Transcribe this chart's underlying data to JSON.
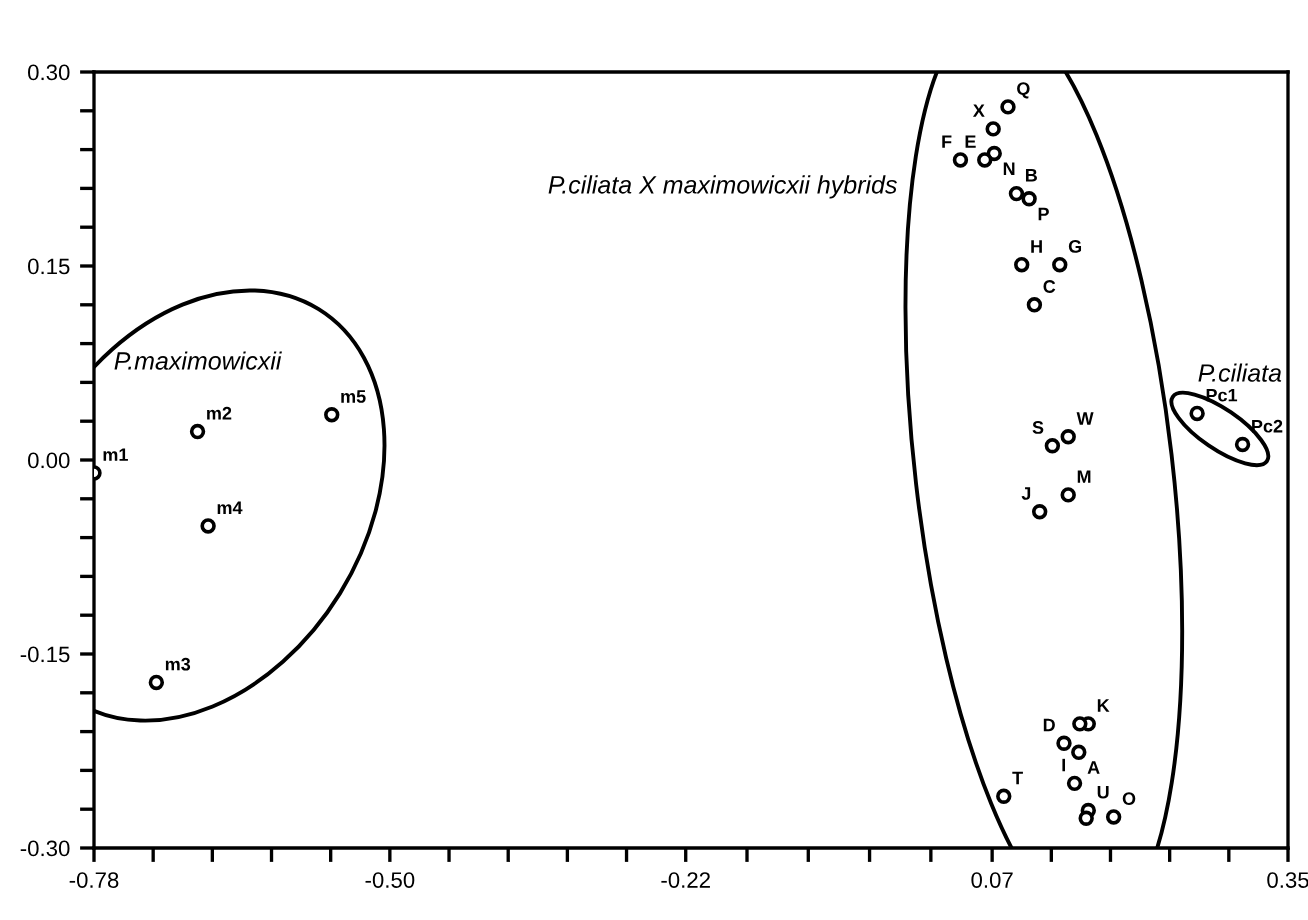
{
  "chart_data": {
    "type": "scatter",
    "marker": "circle",
    "grid": false,
    "xlim": [
      -0.78,
      0.35
    ],
    "ylim": [
      -0.3,
      0.3
    ],
    "xticks": [
      {
        "value": -0.78,
        "label": "-0.78"
      },
      {
        "value": -0.724,
        "label": null
      },
      {
        "value": -0.668,
        "label": null
      },
      {
        "value": -0.612,
        "label": null
      },
      {
        "value": -0.556,
        "label": null
      },
      {
        "value": -0.5,
        "label": "-0.50"
      },
      {
        "value": -0.444,
        "label": null
      },
      {
        "value": -0.388,
        "label": null
      },
      {
        "value": -0.332,
        "label": null
      },
      {
        "value": -0.276,
        "label": null
      },
      {
        "value": -0.22,
        "label": "-0.22"
      },
      {
        "value": -0.162,
        "label": null
      },
      {
        "value": -0.104,
        "label": null
      },
      {
        "value": -0.046,
        "label": null
      },
      {
        "value": 0.012,
        "label": null
      },
      {
        "value": 0.07,
        "label": "0.07"
      },
      {
        "value": 0.126,
        "label": null
      },
      {
        "value": 0.182,
        "label": null
      },
      {
        "value": 0.238,
        "label": null
      },
      {
        "value": 0.294,
        "label": null
      },
      {
        "value": 0.35,
        "label": "0.35"
      }
    ],
    "yticks": [
      {
        "value": -0.3,
        "label": "-0.30"
      },
      {
        "value": -0.27,
        "label": null
      },
      {
        "value": -0.24,
        "label": null
      },
      {
        "value": -0.21,
        "label": null
      },
      {
        "value": -0.18,
        "label": null
      },
      {
        "value": -0.15,
        "label": "-0.15"
      },
      {
        "value": -0.12,
        "label": null
      },
      {
        "value": -0.09,
        "label": null
      },
      {
        "value": -0.06,
        "label": null
      },
      {
        "value": -0.03,
        "label": null
      },
      {
        "value": 0.0,
        "label": "0.00"
      },
      {
        "value": 0.03,
        "label": null
      },
      {
        "value": 0.06,
        "label": null
      },
      {
        "value": 0.09,
        "label": null
      },
      {
        "value": 0.12,
        "label": null
      },
      {
        "value": 0.15,
        "label": "0.15"
      },
      {
        "value": 0.18,
        "label": null
      },
      {
        "value": 0.21,
        "label": null
      },
      {
        "value": 0.24,
        "label": null
      },
      {
        "value": 0.27,
        "label": null
      },
      {
        "value": 0.3,
        "label": "0.30"
      }
    ],
    "series": [
      {
        "name": "P.maximowicxii",
        "color": "#000000",
        "x": [
          -0.78,
          -0.682,
          -0.721,
          -0.672,
          -0.555
        ],
        "values": [
          -0.01,
          0.022,
          -0.172,
          -0.051,
          0.035
        ],
        "value_labels": [
          "m1",
          "m2",
          "m3",
          "m4",
          "m5"
        ]
      },
      {
        "name": "P.ciliata X maximowicxii hybrids",
        "color": "#000000",
        "x": [
          0.085,
          0.071,
          0.072,
          0.063,
          0.04,
          0.093,
          0.105,
          0.098,
          0.134,
          0.11,
          0.127,
          0.142,
          0.115,
          0.142,
          0.161,
          0.153,
          0.138,
          0.152,
          0.148,
          0.081,
          0.161,
          0.159,
          0.185
        ],
        "values": [
          0.273,
          0.256,
          0.237,
          0.232,
          0.232,
          0.206,
          0.202,
          0.151,
          0.151,
          0.12,
          0.011,
          0.018,
          -0.04,
          -0.027,
          -0.204,
          -0.204,
          -0.219,
          -0.226,
          -0.25,
          -0.26,
          -0.271,
          -0.277,
          -0.276
        ],
        "value_labels": [
          "Q",
          "X",
          "N",
          "E",
          "F",
          "B",
          "P",
          "H",
          "G",
          "C",
          "S",
          "W",
          "J",
          "M",
          "K",
          null,
          "D",
          "A",
          "I",
          "T",
          "U",
          null,
          "O"
        ]
      },
      {
        "name": "P.ciliata",
        "color": "#000000",
        "x": [
          0.264,
          0.307
        ],
        "values": [
          0.036,
          0.012
        ],
        "value_labels": [
          "Pc1",
          "Pc2"
        ]
      }
    ]
  }
}
